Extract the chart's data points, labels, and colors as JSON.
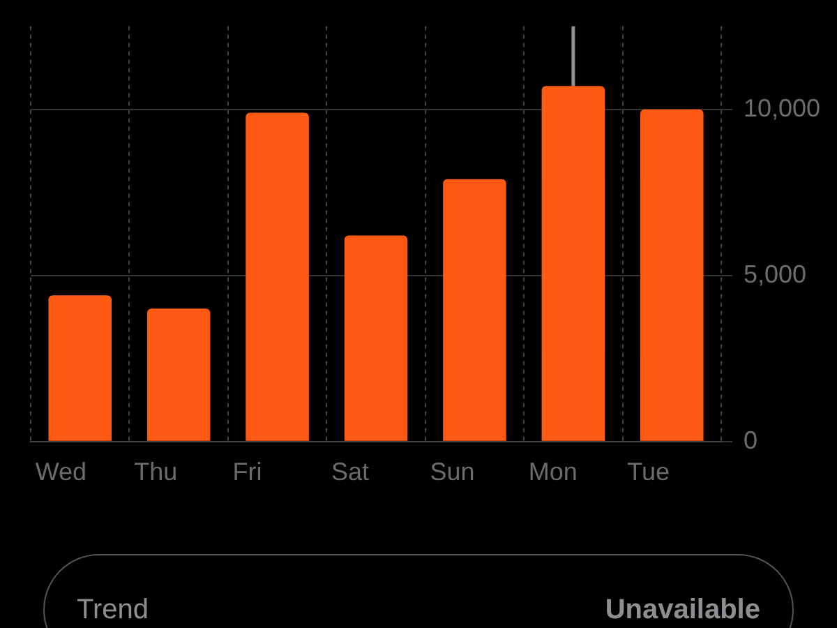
{
  "chart_data": {
    "type": "bar",
    "categories": [
      "Wed",
      "Thu",
      "Fri",
      "Sat",
      "Sun",
      "Mon",
      "Tue"
    ],
    "values": [
      4400,
      4000,
      9900,
      6200,
      7900,
      10700,
      10000
    ],
    "color": "#ff5a14",
    "ylim": [
      0,
      12500
    ],
    "yticks": [
      0,
      {
        "value": 5000,
        "label": "5,000"
      },
      {
        "value": 10000,
        "label": "10,000"
      }
    ],
    "grid": true,
    "legend": false,
    "ref_lines": [
      {
        "axis": "x",
        "value": "Mon",
        "color": "#8e8e93"
      }
    ],
    "annotations": [
      "Trend",
      "Unavailable"
    ]
  }
}
